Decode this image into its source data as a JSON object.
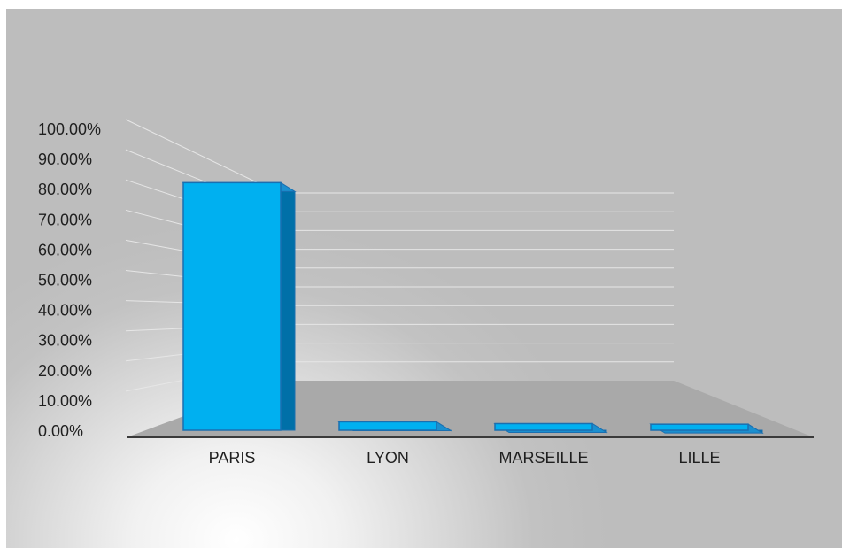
{
  "chart_data": {
    "type": "bar",
    "style": "3d-column",
    "categories": [
      "PARIS",
      "LYON",
      "MARSEILLE",
      "LILLE"
    ],
    "values": [
      0.82,
      0.028,
      0.022,
      0.02
    ],
    "y_tick_labels": [
      "0.00%",
      "10.00%",
      "20.00%",
      "30.00%",
      "40.00%",
      "50.00%",
      "60.00%",
      "70.00%",
      "80.00%",
      "90.00%",
      "100.00%"
    ],
    "ylim": [
      0,
      1
    ],
    "y_format": "percent",
    "grid": true,
    "legend": "none",
    "title": "",
    "xlabel": "",
    "ylabel": "",
    "colors": {
      "bar_front": "#00b0f0",
      "bar_side": "#0070a8",
      "bar_top": "#1a8fcf",
      "bar_edge": "#1a6fb0",
      "floor": "#a9a9a9",
      "floor_line": "#3a3a3a",
      "gridline": "#e6e6e6"
    }
  }
}
